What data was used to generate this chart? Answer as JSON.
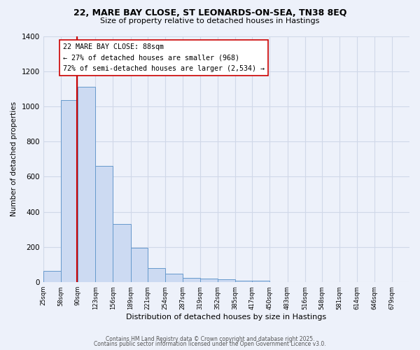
{
  "title1": "22, MARE BAY CLOSE, ST LEONARDS-ON-SEA, TN38 8EQ",
  "title2": "Size of property relative to detached houses in Hastings",
  "xlabel": "Distribution of detached houses by size in Hastings",
  "ylabel": "Number of detached properties",
  "bin_edges": [
    25,
    58,
    90,
    123,
    156,
    189,
    221,
    254,
    287,
    319,
    352,
    385,
    417,
    450,
    483,
    516,
    548,
    581,
    614,
    646,
    679,
    712
  ],
  "counts": [
    65,
    1035,
    1110,
    660,
    330,
    195,
    80,
    50,
    25,
    20,
    18,
    10,
    8,
    0,
    0,
    0,
    0,
    0,
    0,
    0,
    0
  ],
  "tick_labels": [
    "25sqm",
    "58sqm",
    "90sqm",
    "123sqm",
    "156sqm",
    "189sqm",
    "221sqm",
    "254sqm",
    "287sqm",
    "319sqm",
    "352sqm",
    "385sqm",
    "417sqm",
    "450sqm",
    "483sqm",
    "516sqm",
    "548sqm",
    "581sqm",
    "614sqm",
    "646sqm",
    "679sqm"
  ],
  "bar_color": "#ccdaf2",
  "bar_edge_color": "#6699cc",
  "grid_color": "#d0d8e8",
  "bg_color": "#edf1fa",
  "vline_x": 88,
  "vline_color": "#cc0000",
  "annotation_title": "22 MARE BAY CLOSE: 88sqm",
  "annotation_line1": "← 27% of detached houses are smaller (968)",
  "annotation_line2": "72% of semi-detached houses are larger (2,534) →",
  "annotation_box_color": "#ffffff",
  "annotation_box_edge": "#cc0000",
  "footer1": "Contains HM Land Registry data © Crown copyright and database right 2025.",
  "footer2": "Contains public sector information licensed under the Open Government Licence v3.0.",
  "ylim": [
    0,
    1400
  ],
  "yticks": [
    0,
    200,
    400,
    600,
    800,
    1000,
    1200,
    1400
  ]
}
